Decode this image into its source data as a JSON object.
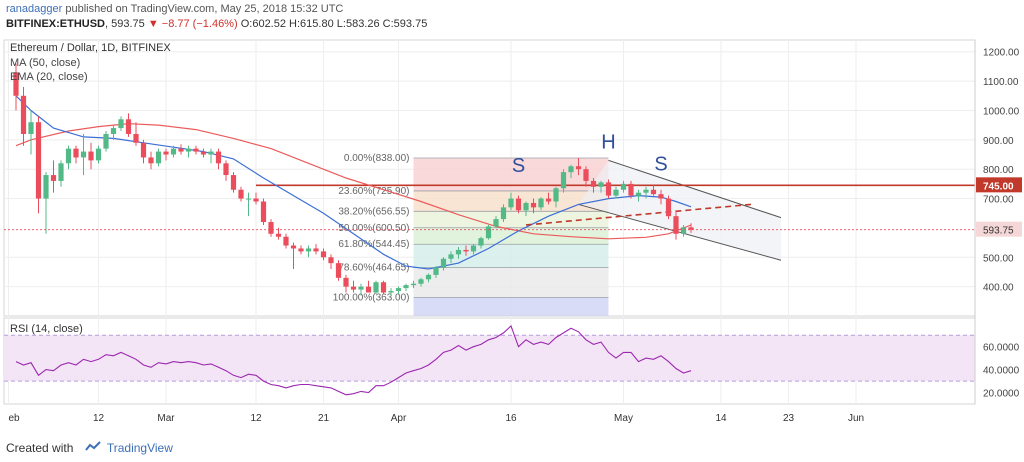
{
  "header": {
    "author": "ranadagger",
    "published": "published on TradingView.com, May 25, 2018 15:32 UTC",
    "symbol": "BITFINEX:ETHUSD",
    "price": "593.75",
    "change_arrow": "▼",
    "change": "−8.77 (−1.46%)",
    "o_label": "O:",
    "o": "602.52",
    "h_label": "H:",
    "h": "615.80",
    "l_label": "L:",
    "l": "583.26",
    "c_label": "C:",
    "c": "593.75"
  },
  "footer": {
    "created_with": "Created with",
    "brand": "TradingView"
  },
  "colors": {
    "up": "#53b987",
    "down": "#eb4d5c",
    "ma50": "#ec5b5b",
    "ema20": "#3b6fd6",
    "resistance": "#c0392b",
    "rsi": "#9c27b0",
    "rsi_band": "#f3e5f5",
    "channel": "#555555"
  },
  "chart_data": [
    {
      "type": "candlestick",
      "title": "Ethereum / Dollar, 1D, BITFINEX",
      "indicators": [
        "MA (50, close)",
        "EMA (20, close)"
      ],
      "x_ticks": [
        "eb",
        "12",
        "Mar",
        "12",
        "21",
        "Apr",
        "16",
        "May",
        "14",
        "23",
        "Jun"
      ],
      "x_tick_days": [
        0,
        12,
        21,
        33,
        42,
        52,
        67,
        82,
        95,
        104,
        113
      ],
      "y_ticks": [
        "1200.00",
        "1100.00",
        "1000.00",
        "900.00",
        "800.00",
        "700.00",
        "500.00",
        "400.00"
      ],
      "ylim": [
        300,
        1240
      ],
      "last_price_label": "593.75",
      "resistance_label": "745.00",
      "resistance_value": 745,
      "annotations": [
        {
          "text": "S",
          "day": 68,
          "value": 790
        },
        {
          "text": "H",
          "day": 80,
          "value": 870
        },
        {
          "text": "S",
          "day": 87,
          "value": 795
        }
      ],
      "fibonacci": [
        {
          "label": "0.00%(838.00)",
          "value": 838
        },
        {
          "label": "23.60%(725.90)",
          "value": 725.9
        },
        {
          "label": "38.20%(656.55)",
          "value": 656.55
        },
        {
          "label": "50.00%(600.50)",
          "value": 600.5
        },
        {
          "label": "61.80%(544.45)",
          "value": 544.45
        },
        {
          "label": "78.60%(464.65)",
          "value": 464.65
        },
        {
          "label": "100.00%(363.00)",
          "value": 363
        }
      ],
      "fib_range_days": [
        54,
        80
      ],
      "channel": {
        "upper": [
          [
            80,
            830
          ],
          [
            103,
            635
          ]
        ],
        "lower": [
          [
            76,
            680
          ],
          [
            103,
            490
          ]
        ]
      },
      "neckline": [
        [
          69,
          610
        ],
        [
          99,
          680
        ]
      ],
      "ohlc": [
        [
          1,
          1130,
          1160,
          1000,
          1050
        ],
        [
          2,
          1050,
          1080,
          880,
          920
        ],
        [
          3,
          920,
          1000,
          850,
          960
        ],
        [
          4,
          960,
          980,
          650,
          700
        ],
        [
          5,
          700,
          790,
          580,
          780
        ],
        [
          6,
          780,
          830,
          720,
          760
        ],
        [
          7,
          760,
          830,
          740,
          820
        ],
        [
          8,
          820,
          880,
          800,
          870
        ],
        [
          9,
          870,
          880,
          820,
          840
        ],
        [
          10,
          840,
          920,
          780,
          860
        ],
        [
          11,
          860,
          890,
          800,
          830
        ],
        [
          12,
          830,
          880,
          820,
          870
        ],
        [
          13,
          870,
          930,
          860,
          920
        ],
        [
          14,
          920,
          950,
          900,
          940
        ],
        [
          15,
          940,
          980,
          930,
          970
        ],
        [
          16,
          970,
          990,
          910,
          920
        ],
        [
          17,
          920,
          960,
          880,
          890
        ],
        [
          18,
          890,
          900,
          820,
          840
        ],
        [
          19,
          840,
          860,
          800,
          820
        ],
        [
          20,
          820,
          870,
          810,
          860
        ],
        [
          21,
          860,
          870,
          830,
          850
        ],
        [
          22,
          850,
          880,
          840,
          870
        ],
        [
          23,
          870,
          885,
          850,
          860
        ],
        [
          24,
          860,
          880,
          840,
          870
        ],
        [
          25,
          870,
          880,
          850,
          860
        ],
        [
          26,
          860,
          870,
          840,
          850
        ],
        [
          27,
          850,
          870,
          820,
          860
        ],
        [
          28,
          860,
          870,
          800,
          820
        ],
        [
          29,
          820,
          830,
          760,
          780
        ],
        [
          30,
          780,
          790,
          720,
          730
        ],
        [
          31,
          730,
          740,
          690,
          700
        ],
        [
          32,
          700,
          720,
          640,
          700
        ],
        [
          33,
          700,
          720,
          680,
          690
        ],
        [
          34,
          690,
          700,
          610,
          620
        ],
        [
          35,
          620,
          630,
          570,
          580
        ],
        [
          36,
          580,
          600,
          560,
          570
        ],
        [
          37,
          570,
          580,
          530,
          540
        ],
        [
          38,
          540,
          550,
          460,
          530
        ],
        [
          39,
          530,
          540,
          510,
          520
        ],
        [
          40,
          520,
          540,
          500,
          530
        ],
        [
          41,
          530,
          545,
          510,
          520
        ],
        [
          42,
          520,
          530,
          490,
          500
        ],
        [
          43,
          500,
          510,
          460,
          480
        ],
        [
          44,
          480,
          490,
          420,
          430
        ],
        [
          45,
          430,
          440,
          380,
          400
        ],
        [
          46,
          400,
          420,
          380,
          390
        ],
        [
          47,
          390,
          410,
          370,
          400
        ],
        [
          48,
          400,
          420,
          380,
          380
        ],
        [
          49,
          380,
          420,
          375,
          415
        ],
        [
          50,
          415,
          420,
          375,
          380
        ],
        [
          51,
          380,
          395,
          370,
          385
        ],
        [
          52,
          385,
          400,
          375,
          395
        ],
        [
          53,
          395,
          410,
          385,
          405
        ],
        [
          54,
          405,
          420,
          395,
          410
        ],
        [
          55,
          410,
          430,
          400,
          425
        ],
        [
          56,
          425,
          445,
          415,
          440
        ],
        [
          57,
          440,
          470,
          430,
          465
        ],
        [
          58,
          465,
          500,
          455,
          495
        ],
        [
          59,
          495,
          520,
          480,
          510
        ],
        [
          60,
          510,
          535,
          495,
          525
        ],
        [
          61,
          525,
          540,
          505,
          520
        ],
        [
          62,
          520,
          545,
          510,
          540
        ],
        [
          63,
          540,
          570,
          530,
          565
        ],
        [
          64,
          565,
          610,
          560,
          605
        ],
        [
          65,
          605,
          640,
          600,
          630
        ],
        [
          66,
          630,
          680,
          620,
          670
        ],
        [
          67,
          670,
          720,
          660,
          700
        ],
        [
          68,
          700,
          710,
          650,
          660
        ],
        [
          69,
          660,
          690,
          640,
          685
        ],
        [
          70,
          685,
          700,
          650,
          670
        ],
        [
          71,
          670,
          705,
          660,
          700
        ],
        [
          72,
          700,
          720,
          680,
          690
        ],
        [
          73,
          690,
          740,
          670,
          735
        ],
        [
          74,
          735,
          800,
          720,
          790
        ],
        [
          75,
          790,
          815,
          770,
          810
        ],
        [
          76,
          810,
          838,
          780,
          800
        ],
        [
          77,
          800,
          810,
          740,
          760
        ],
        [
          78,
          760,
          770,
          720,
          740
        ],
        [
          79,
          740,
          760,
          720,
          755
        ],
        [
          80,
          755,
          765,
          700,
          710
        ],
        [
          81,
          710,
          740,
          700,
          730
        ],
        [
          82,
          730,
          760,
          720,
          750
        ],
        [
          83,
          750,
          760,
          700,
          710
        ],
        [
          84,
          710,
          730,
          690,
          720
        ],
        [
          85,
          720,
          740,
          700,
          730
        ],
        [
          86,
          730,
          745,
          710,
          715
        ],
        [
          87,
          715,
          730,
          680,
          700
        ],
        [
          88,
          700,
          710,
          630,
          640
        ],
        [
          89,
          640,
          660,
          560,
          580
        ],
        [
          90,
          580,
          610,
          570,
          602
        ],
        [
          91,
          602,
          616,
          583,
          594
        ]
      ],
      "ma50": [
        [
          1,
          880
        ],
        [
          3,
          900
        ],
        [
          8,
          930
        ],
        [
          12,
          945
        ],
        [
          16,
          955
        ],
        [
          20,
          950
        ],
        [
          25,
          935
        ],
        [
          30,
          905
        ],
        [
          35,
          870
        ],
        [
          40,
          820
        ],
        [
          45,
          770
        ],
        [
          50,
          730
        ],
        [
          55,
          690
        ],
        [
          60,
          645
        ],
        [
          65,
          605
        ],
        [
          70,
          580
        ],
        [
          75,
          570
        ],
        [
          80,
          563
        ],
        [
          85,
          568
        ],
        [
          88,
          580
        ],
        [
          91,
          610
        ]
      ],
      "ema20": [
        [
          1,
          1050
        ],
        [
          3,
          1000
        ],
        [
          6,
          940
        ],
        [
          10,
          910
        ],
        [
          14,
          905
        ],
        [
          18,
          890
        ],
        [
          22,
          875
        ],
        [
          26,
          860
        ],
        [
          30,
          835
        ],
        [
          34,
          770
        ],
        [
          38,
          710
        ],
        [
          42,
          650
        ],
        [
          46,
          580
        ],
        [
          50,
          510
        ],
        [
          53,
          470
        ],
        [
          56,
          460
        ],
        [
          60,
          480
        ],
        [
          64,
          530
        ],
        [
          68,
          590
        ],
        [
          72,
          640
        ],
        [
          76,
          680
        ],
        [
          80,
          700
        ],
        [
          84,
          710
        ],
        [
          87,
          705
        ],
        [
          89,
          690
        ],
        [
          91,
          672
        ]
      ]
    },
    {
      "type": "line",
      "title": "RSI (14, close)",
      "ylim": [
        10,
        85
      ],
      "y_ticks": [
        "60.0000",
        "40.0000",
        "20.0000"
      ],
      "bands": [
        30,
        70
      ],
      "values": [
        [
          1,
          47
        ],
        [
          2,
          44
        ],
        [
          3,
          46
        ],
        [
          4,
          35
        ],
        [
          5,
          40
        ],
        [
          6,
          39
        ],
        [
          7,
          44
        ],
        [
          8,
          46
        ],
        [
          9,
          44
        ],
        [
          10,
          49
        ],
        [
          11,
          47
        ],
        [
          12,
          49
        ],
        [
          13,
          53
        ],
        [
          14,
          52
        ],
        [
          15,
          55
        ],
        [
          16,
          52
        ],
        [
          17,
          49
        ],
        [
          18,
          44
        ],
        [
          19,
          42
        ],
        [
          20,
          46
        ],
        [
          21,
          45
        ],
        [
          22,
          47
        ],
        [
          23,
          46
        ],
        [
          24,
          47
        ],
        [
          25,
          46
        ],
        [
          26,
          44
        ],
        [
          27,
          45
        ],
        [
          28,
          42
        ],
        [
          29,
          39
        ],
        [
          30,
          35
        ],
        [
          31,
          33
        ],
        [
          32,
          36
        ],
        [
          33,
          35
        ],
        [
          34,
          30
        ],
        [
          35,
          27
        ],
        [
          36,
          26
        ],
        [
          37,
          24
        ],
        [
          38,
          26
        ],
        [
          39,
          27
        ],
        [
          40,
          27
        ],
        [
          41,
          26
        ],
        [
          42,
          25
        ],
        [
          43,
          24
        ],
        [
          44,
          21
        ],
        [
          45,
          18
        ],
        [
          46,
          19
        ],
        [
          47,
          21
        ],
        [
          48,
          20
        ],
        [
          49,
          26
        ],
        [
          50,
          26
        ],
        [
          51,
          29
        ],
        [
          52,
          33
        ],
        [
          53,
          37
        ],
        [
          54,
          39
        ],
        [
          55,
          41
        ],
        [
          56,
          44
        ],
        [
          57,
          49
        ],
        [
          58,
          55
        ],
        [
          59,
          57
        ],
        [
          60,
          61
        ],
        [
          61,
          57
        ],
        [
          62,
          60
        ],
        [
          63,
          62
        ],
        [
          64,
          66
        ],
        [
          65,
          68
        ],
        [
          66,
          72
        ],
        [
          67,
          78
        ],
        [
          68,
          60
        ],
        [
          69,
          66
        ],
        [
          70,
          62
        ],
        [
          71,
          64
        ],
        [
          72,
          62
        ],
        [
          73,
          68
        ],
        [
          74,
          72
        ],
        [
          75,
          76
        ],
        [
          76,
          73
        ],
        [
          77,
          66
        ],
        [
          78,
          62
        ],
        [
          79,
          64
        ],
        [
          80,
          55
        ],
        [
          81,
          50
        ],
        [
          82,
          55
        ],
        [
          83,
          55
        ],
        [
          84,
          47
        ],
        [
          85,
          50
        ],
        [
          86,
          49
        ],
        [
          87,
          52
        ],
        [
          88,
          47
        ],
        [
          89,
          41
        ],
        [
          90,
          37
        ],
        [
          91,
          39
        ]
      ]
    }
  ]
}
